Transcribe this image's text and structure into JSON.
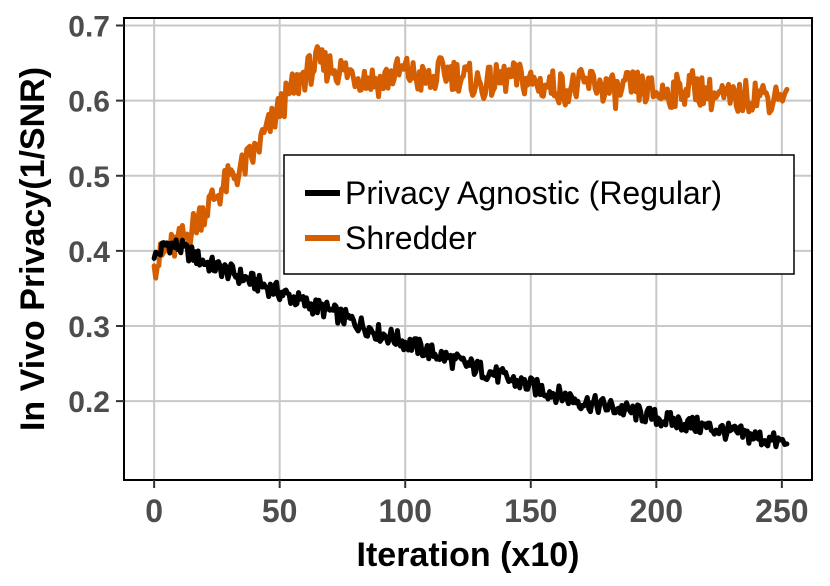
{
  "chart_data": {
    "type": "line",
    "title": "",
    "xlabel": "Iteration (x10)",
    "ylabel": "In Vivo Privacy(1/SNR)",
    "xlim": [
      -12,
      262
    ],
    "ylim": [
      0.095,
      0.71
    ],
    "x_ticks": [
      0,
      50,
      100,
      150,
      200,
      250
    ],
    "x_tick_labels": [
      "0",
      "50",
      "100",
      "150",
      "200",
      "250"
    ],
    "y_ticks": [
      0.2,
      0.3,
      0.4,
      0.5,
      0.6,
      0.7
    ],
    "y_tick_labels": [
      "0.2",
      "0.3",
      "0.4",
      "0.5",
      "0.6",
      "0.7"
    ],
    "grid": true,
    "legend_position": "center-right",
    "series": [
      {
        "name": "Privacy Agnostic (Regular)",
        "color": "#000000",
        "x": [
          0,
          5,
          10,
          15,
          20,
          25,
          30,
          35,
          40,
          45,
          50,
          55,
          60,
          65,
          70,
          75,
          80,
          85,
          90,
          95,
          100,
          105,
          110,
          115,
          120,
          125,
          130,
          135,
          140,
          145,
          150,
          155,
          160,
          165,
          170,
          175,
          180,
          185,
          190,
          195,
          200,
          205,
          210,
          215,
          220,
          225,
          230,
          235,
          240,
          245,
          252
        ],
        "values": [
          0.39,
          0.41,
          0.405,
          0.395,
          0.385,
          0.378,
          0.372,
          0.365,
          0.358,
          0.352,
          0.345,
          0.338,
          0.33,
          0.325,
          0.32,
          0.312,
          0.305,
          0.298,
          0.29,
          0.285,
          0.278,
          0.272,
          0.265,
          0.26,
          0.253,
          0.248,
          0.242,
          0.237,
          0.23,
          0.225,
          0.22,
          0.215,
          0.21,
          0.205,
          0.2,
          0.196,
          0.193,
          0.19,
          0.186,
          0.182,
          0.178,
          0.174,
          0.171,
          0.168,
          0.165,
          0.162,
          0.158,
          0.155,
          0.152,
          0.148,
          0.143
        ]
      },
      {
        "name": "Shredder",
        "color": "#d55e00",
        "x": [
          0,
          5,
          10,
          15,
          20,
          25,
          30,
          35,
          40,
          45,
          50,
          55,
          60,
          65,
          70,
          75,
          80,
          85,
          90,
          95,
          100,
          105,
          110,
          115,
          120,
          125,
          130,
          135,
          140,
          145,
          150,
          155,
          160,
          165,
          170,
          175,
          180,
          185,
          190,
          195,
          200,
          205,
          210,
          215,
          220,
          225,
          230,
          235,
          240,
          245,
          252
        ],
        "values": [
          0.38,
          0.4,
          0.41,
          0.43,
          0.455,
          0.475,
          0.495,
          0.51,
          0.53,
          0.56,
          0.59,
          0.615,
          0.635,
          0.65,
          0.645,
          0.64,
          0.635,
          0.63,
          0.625,
          0.635,
          0.64,
          0.63,
          0.625,
          0.64,
          0.635,
          0.63,
          0.62,
          0.625,
          0.63,
          0.63,
          0.625,
          0.62,
          0.62,
          0.615,
          0.62,
          0.625,
          0.615,
          0.61,
          0.62,
          0.615,
          0.61,
          0.61,
          0.615,
          0.62,
          0.61,
          0.605,
          0.6,
          0.605,
          0.61,
          0.605,
          0.615
        ]
      }
    ]
  }
}
